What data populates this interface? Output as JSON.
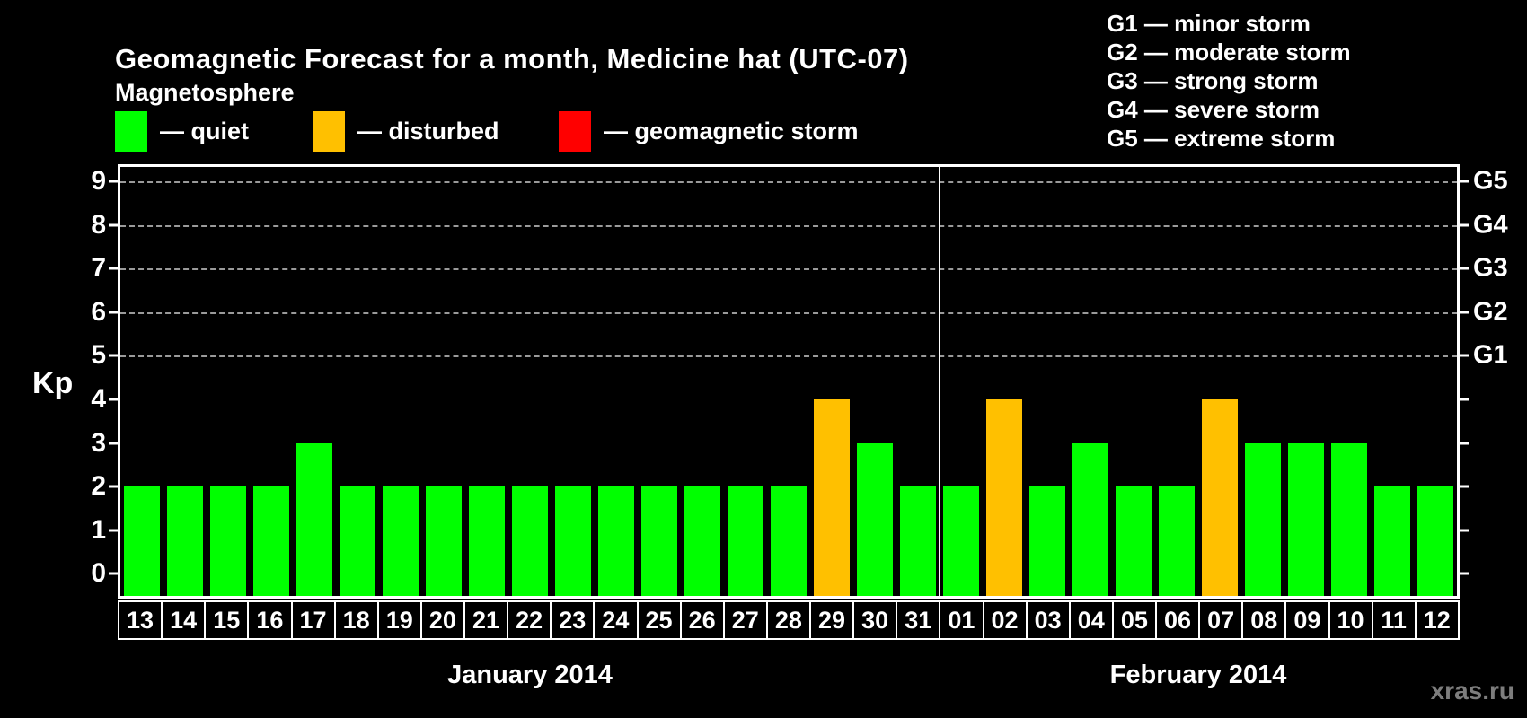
{
  "title": "Geomagnetic Forecast for a month, Medicine hat (UTC-07)",
  "subtitle": "Magnetosphere",
  "watermark": "xras.ru",
  "colors": {
    "background": "#000000",
    "text": "#ffffff",
    "grid": "#9a9a9a",
    "watermark": "#7d7d7d",
    "quiet": "#00ff00",
    "disturbed": "#ffc000",
    "storm": "#ff0000"
  },
  "legend": {
    "items": [
      {
        "status": "quiet",
        "label": "— quiet"
      },
      {
        "status": "disturbed",
        "label": "— disturbed"
      },
      {
        "status": "storm",
        "label": "— geomagnetic storm"
      }
    ]
  },
  "storm_scale": {
    "items": [
      "G1 — minor storm",
      "G2 — moderate storm",
      "G3 — strong storm",
      "G4 — severe storm",
      "G5 — extreme storm"
    ]
  },
  "chart_data": {
    "type": "bar",
    "title": "Geomagnetic Forecast for a month, Medicine hat (UTC-07)",
    "xlabel": "",
    "ylabel": "Kp",
    "ylim": [
      0,
      9
    ],
    "yticks": [
      0,
      1,
      2,
      3,
      4,
      5,
      6,
      7,
      8,
      9
    ],
    "grid_levels": [
      5,
      6,
      7,
      8,
      9
    ],
    "grid_style": "dashed",
    "legend_position": "top-left",
    "right_axis": [
      {
        "label": "G1",
        "value": 5
      },
      {
        "label": "G2",
        "value": 6
      },
      {
        "label": "G3",
        "value": 7
      },
      {
        "label": "G4",
        "value": 8
      },
      {
        "label": "G5",
        "value": 9
      }
    ],
    "months": [
      {
        "label": "January 2014",
        "days": [
          {
            "day": "13",
            "kp": 2,
            "status": "quiet"
          },
          {
            "day": "14",
            "kp": 2,
            "status": "quiet"
          },
          {
            "day": "15",
            "kp": 2,
            "status": "quiet"
          },
          {
            "day": "16",
            "kp": 2,
            "status": "quiet"
          },
          {
            "day": "17",
            "kp": 3,
            "status": "quiet"
          },
          {
            "day": "18",
            "kp": 2,
            "status": "quiet"
          },
          {
            "day": "19",
            "kp": 2,
            "status": "quiet"
          },
          {
            "day": "20",
            "kp": 2,
            "status": "quiet"
          },
          {
            "day": "21",
            "kp": 2,
            "status": "quiet"
          },
          {
            "day": "22",
            "kp": 2,
            "status": "quiet"
          },
          {
            "day": "23",
            "kp": 2,
            "status": "quiet"
          },
          {
            "day": "24",
            "kp": 2,
            "status": "quiet"
          },
          {
            "day": "25",
            "kp": 2,
            "status": "quiet"
          },
          {
            "day": "26",
            "kp": 2,
            "status": "quiet"
          },
          {
            "day": "27",
            "kp": 2,
            "status": "quiet"
          },
          {
            "day": "28",
            "kp": 2,
            "status": "quiet"
          },
          {
            "day": "29",
            "kp": 4,
            "status": "disturbed"
          },
          {
            "day": "30",
            "kp": 3,
            "status": "quiet"
          },
          {
            "day": "31",
            "kp": 2,
            "status": "quiet"
          }
        ]
      },
      {
        "label": "February 2014",
        "days": [
          {
            "day": "01",
            "kp": 2,
            "status": "quiet"
          },
          {
            "day": "02",
            "kp": 4,
            "status": "disturbed"
          },
          {
            "day": "03",
            "kp": 2,
            "status": "quiet"
          },
          {
            "day": "04",
            "kp": 3,
            "status": "quiet"
          },
          {
            "day": "05",
            "kp": 2,
            "status": "quiet"
          },
          {
            "day": "06",
            "kp": 2,
            "status": "quiet"
          },
          {
            "day": "07",
            "kp": 4,
            "status": "disturbed"
          },
          {
            "day": "08",
            "kp": 3,
            "status": "quiet"
          },
          {
            "day": "09",
            "kp": 3,
            "status": "quiet"
          },
          {
            "day": "10",
            "kp": 3,
            "status": "quiet"
          },
          {
            "day": "11",
            "kp": 2,
            "status": "quiet"
          },
          {
            "day": "12",
            "kp": 2,
            "status": "quiet"
          }
        ]
      }
    ]
  }
}
